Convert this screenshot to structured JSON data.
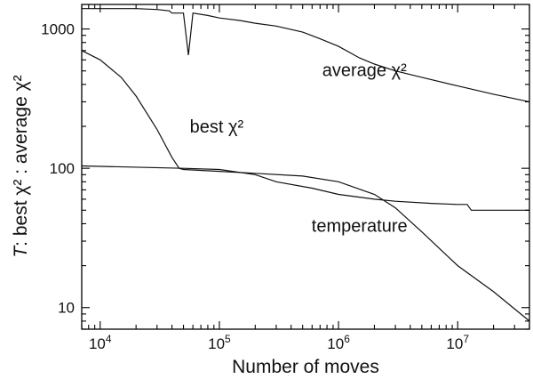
{
  "chart_data": {
    "type": "line",
    "title": "",
    "xlabel": "Number of moves",
    "ylabel_prefix": "T",
    "ylabel_rest": ": best χ² : average χ²",
    "xscale": "log",
    "yscale": "log",
    "xlim": [
      7000,
      40000000
    ],
    "ylim": [
      7,
      1500
    ],
    "grid": false,
    "legend": "none",
    "x_ticks": [
      {
        "value": 10000,
        "mantissa": "10",
        "exp": "4"
      },
      {
        "value": 100000,
        "mantissa": "10",
        "exp": "5"
      },
      {
        "value": 1000000,
        "mantissa": "10",
        "exp": "6"
      },
      {
        "value": 10000000,
        "mantissa": "10",
        "exp": "7"
      }
    ],
    "y_ticks": [
      {
        "value": 10,
        "label": "10"
      },
      {
        "value": 100,
        "label": "100"
      },
      {
        "value": 1000,
        "label": "1000"
      }
    ],
    "series": [
      {
        "key": "average",
        "x": [
          7000,
          20000,
          30000,
          38000,
          40000,
          50000,
          55000,
          60000,
          80000,
          100000,
          150000,
          200000,
          300000,
          500000,
          700000,
          1000000,
          1500000,
          2000000,
          3000000,
          5000000,
          10000000,
          20000000,
          40000000
        ],
        "y": [
          1400,
          1400,
          1380,
          1350,
          1300,
          1300,
          650,
          1300,
          1250,
          1200,
          1150,
          1100,
          1050,
          950,
          850,
          750,
          620,
          560,
          500,
          450,
          390,
          340,
          300
        ]
      },
      {
        "key": "best",
        "x": [
          7000,
          10000,
          15000,
          20000,
          30000,
          40000,
          46000,
          50000,
          100000,
          200000,
          500000,
          1000000,
          2000000,
          3000000,
          5000000,
          10000000,
          20000000,
          40000000
        ],
        "y": [
          700,
          600,
          450,
          330,
          190,
          120,
          100,
          98,
          95,
          92,
          88,
          80,
          65,
          52,
          35,
          20,
          13,
          8
        ]
      },
      {
        "key": "temperature",
        "x": [
          7000,
          50000,
          100000,
          200000,
          300000,
          600000,
          1000000,
          2000000,
          3000000,
          6000000,
          10000000,
          12000000,
          13000000,
          40000000
        ],
        "y": [
          104,
          100,
          98,
          90,
          80,
          72,
          65,
          60,
          58,
          56,
          55,
          55,
          50,
          50
        ]
      }
    ],
    "annotations": [
      {
        "key": "average",
        "text": "average χ²",
        "x": 1650000,
        "y": 460
      },
      {
        "key": "best",
        "text": "best χ²",
        "x": 95000,
        "y": 180
      },
      {
        "key": "temperature",
        "text": "temperature",
        "x": 1500000,
        "y": 35
      }
    ]
  }
}
